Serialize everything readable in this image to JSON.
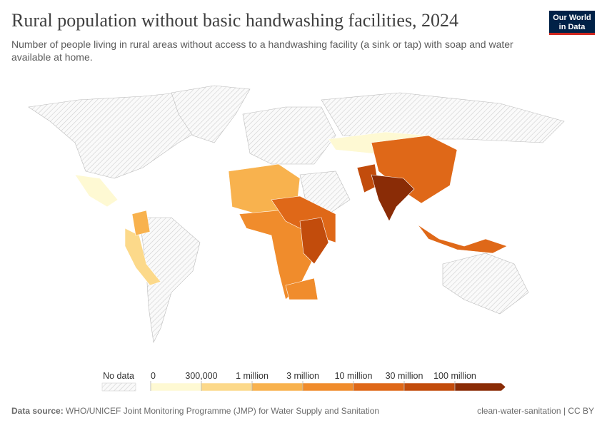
{
  "header": {
    "title": "Rural population without basic handwashing facilities, 2024",
    "subtitle": "Number of people living in rural areas without access to a handwashing facility (a sink or tap) with soap and water available at home.",
    "logo": [
      "Our World",
      "in Data"
    ]
  },
  "legend": {
    "no_data_label": "No data",
    "ticks": [
      0,
      {
        "value": 300000,
        "label": "300,000"
      },
      {
        "value": 1000000,
        "label": "1 million"
      },
      {
        "value": 3000000,
        "label": "3 million"
      },
      {
        "value": 10000000,
        "label": "10 million"
      },
      {
        "value": 30000000,
        "label": "30 million"
      },
      {
        "value": 100000000,
        "label": "100 million"
      }
    ],
    "colors": [
      "#fef9d3",
      "#fcd98a",
      "#f8b24e",
      "#f08c2c",
      "#df6818",
      "#c24c0c",
      "#8a2c06"
    ]
  },
  "footer": {
    "source_label": "Data source:",
    "source": "WHO/UNICEF Joint Monitoring Programme (JMP) for Water Supply and Sanitation",
    "url": "clean-water-sanitation | CC BY"
  }
}
